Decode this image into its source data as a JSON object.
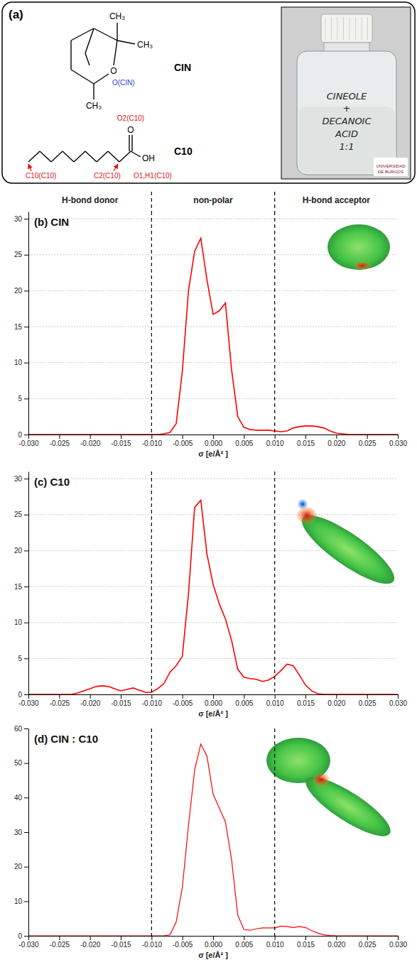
{
  "panel_a": {
    "letter": "(a)",
    "cin": {
      "name": "CIN",
      "methyl": "CH₃",
      "oxygen": "O",
      "oxygen_label": "O(CIN)"
    },
    "c10": {
      "name": "C10",
      "carbonyl": "O",
      "hydroxyl": "OH",
      "labels": [
        "O2(C10)",
        "C10(C10)",
        "C2(C10)",
        "O1,H1(C10)"
      ]
    },
    "photo": {
      "lines": [
        "CINEOLE",
        "+",
        "DECANOIC",
        "ACID",
        "1:1"
      ],
      "logo": [
        "UNIVERSIDAD",
        "DE BURGOS"
      ]
    }
  },
  "header": {
    "labels": [
      "H-bond donor",
      "non-polar",
      "H-bond acceptor"
    ],
    "boundaries": [
      -0.01,
      0.01
    ]
  },
  "chart_data": [
    {
      "type": "line",
      "title": "(b) CIN",
      "xlabel": "σ [e/Å² ]",
      "x": [
        -0.03,
        -0.029,
        -0.028,
        -0.027,
        -0.026,
        -0.025,
        -0.024,
        -0.023,
        -0.022,
        -0.021,
        -0.02,
        -0.019,
        -0.018,
        -0.017,
        -0.016,
        -0.015,
        -0.014,
        -0.013,
        -0.012,
        -0.011,
        -0.01,
        -0.009,
        -0.008,
        -0.007,
        -0.006,
        -0.005,
        -0.004,
        -0.003,
        -0.002,
        -0.001,
        0,
        0.001,
        0.002,
        0.003,
        0.004,
        0.005,
        0.006,
        0.007,
        0.008,
        0.009,
        0.01,
        0.011,
        0.012,
        0.013,
        0.014,
        0.015,
        0.016,
        0.017,
        0.018,
        0.019,
        0.02,
        0.021,
        0.022,
        0.023,
        0.024,
        0.025,
        0.026,
        0.027,
        0.028,
        0.029,
        0.03
      ],
      "values": [
        0,
        0,
        0,
        0,
        0,
        0,
        0,
        0,
        0,
        0,
        0,
        0,
        0,
        0,
        0,
        0,
        0,
        0,
        0,
        0,
        0,
        0,
        0.1,
        0.3,
        1.5,
        8.8,
        20,
        25.5,
        27.3,
        21.5,
        16.7,
        17.2,
        18.3,
        9,
        2.5,
        1,
        0.7,
        0.6,
        0.6,
        0.6,
        0.5,
        0.4,
        0.5,
        0.9,
        1.1,
        1.2,
        1.2,
        1.1,
        0.9,
        0.5,
        0.2,
        0.1,
        0,
        0,
        0,
        0,
        0,
        0,
        0,
        0,
        0
      ],
      "color": "#ff0000",
      "xlim": [
        -0.03,
        0.03
      ],
      "xticks": [
        {
          "value": -0.03,
          "label": "-0.030"
        },
        {
          "value": -0.025,
          "label": "-0.025"
        },
        {
          "value": -0.02,
          "label": "-0.020"
        },
        {
          "value": -0.015,
          "label": "-0.015"
        },
        {
          "value": -0.01,
          "label": "-0.010"
        },
        {
          "value": -0.005,
          "label": "-0.005"
        },
        {
          "value": 0,
          "label": "0.000"
        },
        {
          "value": 0.005,
          "label": "0.005"
        },
        {
          "value": 0.01,
          "label": "0.010"
        },
        {
          "value": 0.015,
          "label": "0.015"
        },
        {
          "value": 0.02,
          "label": "0.020"
        },
        {
          "value": 0.025,
          "label": "0.025"
        },
        {
          "value": 0.03,
          "label": "0.030"
        }
      ],
      "ylim": [
        0,
        31
      ],
      "yticks": [
        0,
        5,
        10,
        15,
        20,
        25,
        30
      ],
      "grid": true
    },
    {
      "type": "line",
      "title": "(c) C10",
      "xlabel": "σ [e/Å² ]",
      "x": [
        -0.03,
        -0.029,
        -0.028,
        -0.027,
        -0.026,
        -0.025,
        -0.024,
        -0.023,
        -0.022,
        -0.021,
        -0.02,
        -0.019,
        -0.018,
        -0.017,
        -0.016,
        -0.015,
        -0.014,
        -0.013,
        -0.012,
        -0.011,
        -0.01,
        -0.009,
        -0.008,
        -0.007,
        -0.006,
        -0.005,
        -0.004,
        -0.003,
        -0.002,
        -0.001,
        0,
        0.001,
        0.002,
        0.003,
        0.004,
        0.005,
        0.006,
        0.007,
        0.008,
        0.009,
        0.01,
        0.011,
        0.012,
        0.013,
        0.014,
        0.015,
        0.016,
        0.017,
        0.018,
        0.019,
        0.02,
        0.021,
        0.022,
        0.023,
        0.024,
        0.025,
        0.026,
        0.027,
        0.028,
        0.029,
        0.03
      ],
      "values": [
        0,
        0,
        0,
        0,
        0,
        0,
        0,
        0,
        0.2,
        0.5,
        0.8,
        1.1,
        1.2,
        1.1,
        0.8,
        0.5,
        0.7,
        0.9,
        0.6,
        0.3,
        0.3,
        0.8,
        1.5,
        3.1,
        4,
        5.3,
        14,
        26,
        27,
        19.5,
        15.3,
        12.6,
        10.5,
        7.5,
        3.5,
        2.4,
        2.2,
        2.1,
        1.8,
        2,
        2.5,
        3.3,
        4.2,
        4,
        2.7,
        1.3,
        0.5,
        0.1,
        0,
        0,
        0,
        0,
        0,
        0,
        0,
        0,
        0,
        0,
        0,
        0,
        0
      ],
      "color": "#ff0000",
      "xlim": [
        -0.03,
        0.03
      ],
      "xticks": [
        {
          "value": -0.03,
          "label": "-0.030"
        },
        {
          "value": -0.025,
          "label": "-0.025"
        },
        {
          "value": -0.02,
          "label": "-0.020"
        },
        {
          "value": -0.015,
          "label": "-0.015"
        },
        {
          "value": -0.01,
          "label": "-0.010"
        },
        {
          "value": -0.005,
          "label": "-0.005"
        },
        {
          "value": 0,
          "label": "0.000"
        },
        {
          "value": 0.005,
          "label": "0.005"
        },
        {
          "value": 0.01,
          "label": "0.010"
        },
        {
          "value": 0.015,
          "label": "0.015"
        },
        {
          "value": 0.02,
          "label": "0.020"
        },
        {
          "value": 0.025,
          "label": "0.025"
        },
        {
          "value": 0.03,
          "label": "0.030"
        }
      ],
      "ylim": [
        0,
        31
      ],
      "yticks": [
        0,
        5,
        10,
        15,
        20,
        25,
        30
      ],
      "grid": true
    },
    {
      "type": "line",
      "title": "(d) CIN : C10",
      "xlabel": "σ [e/Å² ]",
      "x": [
        -0.03,
        -0.029,
        -0.028,
        -0.027,
        -0.026,
        -0.025,
        -0.024,
        -0.023,
        -0.022,
        -0.021,
        -0.02,
        -0.019,
        -0.018,
        -0.017,
        -0.016,
        -0.015,
        -0.014,
        -0.013,
        -0.012,
        -0.011,
        -0.01,
        -0.009,
        -0.008,
        -0.007,
        -0.006,
        -0.005,
        -0.004,
        -0.003,
        -0.002,
        -0.001,
        0,
        0.001,
        0.002,
        0.003,
        0.004,
        0.005,
        0.006,
        0.007,
        0.008,
        0.009,
        0.01,
        0.011,
        0.012,
        0.013,
        0.014,
        0.015,
        0.016,
        0.017,
        0.018,
        0.019,
        0.02,
        0.021,
        0.022,
        0.023,
        0.024,
        0.025,
        0.026,
        0.027,
        0.028,
        0.029,
        0.03
      ],
      "values": [
        0,
        0,
        0,
        0,
        0,
        0,
        0,
        0,
        0,
        0,
        0,
        0,
        0,
        0,
        0,
        0,
        0,
        0,
        0,
        0,
        0,
        0,
        0,
        0.3,
        4,
        14,
        32,
        48,
        55.5,
        52,
        41,
        37,
        33,
        22,
        6,
        1.8,
        1.6,
        2,
        2.3,
        2.3,
        2.3,
        2.8,
        2.7,
        2.4,
        2.7,
        2.4,
        1.5,
        0.8,
        0.3,
        0.1,
        0,
        0,
        0,
        0,
        0,
        0,
        0,
        0,
        0,
        0,
        0
      ],
      "color": "#ff0000",
      "xlim": [
        -0.03,
        0.03
      ],
      "xticks": [
        {
          "value": -0.03,
          "label": "-0.030"
        },
        {
          "value": -0.025,
          "label": "-0.025"
        },
        {
          "value": -0.02,
          "label": "-0.020"
        },
        {
          "value": -0.015,
          "label": "-0.015"
        },
        {
          "value": -0.01,
          "label": "-0.010"
        },
        {
          "value": -0.005,
          "label": "-0.005"
        },
        {
          "value": 0,
          "label": "0.000"
        },
        {
          "value": 0.005,
          "label": "0.005"
        },
        {
          "value": 0.01,
          "label": "0.010"
        },
        {
          "value": 0.015,
          "label": "0.015"
        },
        {
          "value": 0.02,
          "label": "0.020"
        },
        {
          "value": 0.025,
          "label": "0.025"
        },
        {
          "value": 0.03,
          "label": "0.030"
        }
      ],
      "ylim": [
        0,
        60
      ],
      "yticks": [
        0,
        10,
        20,
        30,
        40,
        50,
        60
      ],
      "grid": false
    }
  ]
}
